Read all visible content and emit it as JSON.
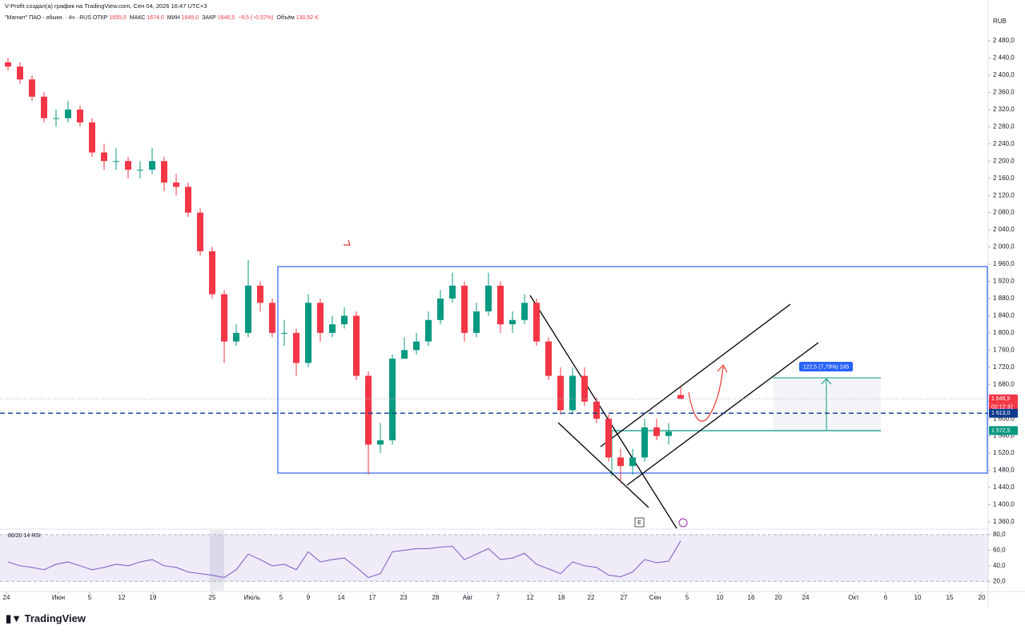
{
  "header": {
    "attribution": "V-Profit создал(а) график на TradingView.com, Сен 04, 2026 16:47 UTC+3",
    "legend": [
      {
        "label": "\"Магнит\" ПАО - обыкн. · 4ч · RUS",
        "value": ""
      },
      {
        "label": "ОТКР",
        "value": "1655,5"
      },
      {
        "label": "МАКС",
        "value": "1674,0"
      },
      {
        "label": "МИН",
        "value": "1645,0"
      },
      {
        "label": "ЗАКР",
        "value": "1646,5"
      },
      {
        "label": "",
        "value": "−9,5 (−0,57%)"
      },
      {
        "label": "Объём",
        "value": "130,52 K"
      }
    ]
  },
  "footer": {
    "logo": "TradingView"
  },
  "annotations": {
    "measure": "122,5 (7,79%) 245",
    "earnings": "E"
  },
  "chart_data": [
    {
      "type": "candlestick",
      "currency": "RUB",
      "countdown": "02:12:32",
      "up_color": "#089981",
      "down_color": "#f23645",
      "x": [
        1,
        4,
        7,
        10,
        13,
        16,
        19,
        22,
        25,
        28,
        31,
        34,
        37,
        40,
        43,
        46,
        49,
        52,
        55,
        58,
        61,
        64,
        67,
        70,
        73,
        76,
        79,
        82,
        85,
        88,
        91,
        94,
        97,
        100,
        103,
        106,
        109,
        112,
        115,
        118,
        121,
        124,
        127,
        130,
        133,
        136,
        139,
        142,
        145,
        148,
        151,
        154,
        157,
        160,
        163,
        166,
        169
      ],
      "open": [
        2430,
        2420,
        2390,
        2350,
        2300,
        2300,
        2320,
        2290,
        2220,
        2200,
        2200,
        2180,
        2180,
        2200,
        2150,
        2140,
        2080,
        1990,
        1890,
        1780,
        1800,
        1910,
        1870,
        1800,
        1800,
        1730,
        1870,
        1800,
        1820,
        1840,
        1700,
        1540,
        1550,
        1740,
        1760,
        1780,
        1830,
        1880,
        1910,
        1800,
        1850,
        1910,
        1820,
        1830,
        1870,
        1780,
        1700,
        1620,
        1700,
        1640,
        1600,
        1510,
        1490,
        1510,
        1580,
        1560,
        1655.5
      ],
      "high": [
        2440,
        2430,
        2400,
        2360,
        2320,
        2340,
        2330,
        2300,
        2240,
        2230,
        2210,
        2200,
        2230,
        2210,
        2170,
        2150,
        2090,
        2000,
        1900,
        1820,
        1970,
        1920,
        1880,
        1830,
        1810,
        1890,
        1880,
        1840,
        1860,
        1850,
        1710,
        1590,
        1750,
        1790,
        1800,
        1850,
        1900,
        1940,
        1920,
        1870,
        1940,
        1920,
        1850,
        1890,
        1880,
        1790,
        1720,
        1720,
        1720,
        1650,
        1610,
        1530,
        1530,
        1600,
        1600,
        1590,
        1674
      ],
      "low": [
        2410,
        2380,
        2340,
        2290,
        2280,
        2290,
        2280,
        2210,
        2180,
        2180,
        2160,
        2160,
        2170,
        2130,
        2120,
        2070,
        1980,
        1880,
        1730,
        1770,
        1790,
        1850,
        1790,
        1770,
        1700,
        1720,
        1780,
        1790,
        1810,
        1690,
        1470,
        1520,
        1540,
        1740,
        1750,
        1770,
        1820,
        1870,
        1780,
        1790,
        1840,
        1800,
        1800,
        1820,
        1770,
        1690,
        1610,
        1610,
        1630,
        1590,
        1500,
        1450,
        1470,
        1500,
        1550,
        1540,
        1645
      ],
      "close": [
        2420,
        2390,
        2350,
        2300,
        2300,
        2320,
        2290,
        2220,
        2200,
        2200,
        2180,
        2180,
        2200,
        2150,
        2140,
        2080,
        1990,
        1890,
        1780,
        1800,
        1910,
        1870,
        1800,
        1800,
        1730,
        1870,
        1800,
        1820,
        1840,
        1700,
        1540,
        1550,
        1740,
        1760,
        1780,
        1830,
        1880,
        1910,
        1800,
        1850,
        1910,
        1820,
        1830,
        1870,
        1780,
        1700,
        1620,
        1700,
        1640,
        1600,
        1510,
        1490,
        1510,
        1580,
        1560,
        1570,
        1646.5
      ],
      "xlim": [
        0,
        245.6
      ],
      "xticks": [
        {
          "value": 0.6,
          "label": "24"
        },
        {
          "value": 13.6,
          "label": "Июн"
        },
        {
          "value": 21.4,
          "label": "5"
        },
        {
          "value": 29.4,
          "label": "12"
        },
        {
          "value": 37.2,
          "label": "19"
        },
        {
          "value": 52,
          "label": "25"
        },
        {
          "value": 62,
          "label": "Июль"
        },
        {
          "value": 69.2,
          "label": "5"
        },
        {
          "value": 76,
          "label": "9"
        },
        {
          "value": 84.2,
          "label": "14"
        },
        {
          "value": 92,
          "label": "17"
        },
        {
          "value": 99.8,
          "label": "23"
        },
        {
          "value": 107.8,
          "label": "28"
        },
        {
          "value": 115.8,
          "label": "Авг"
        },
        {
          "value": 123.4,
          "label": "7"
        },
        {
          "value": 131.4,
          "label": "12"
        },
        {
          "value": 139.2,
          "label": "18"
        },
        {
          "value": 146.6,
          "label": "22"
        },
        {
          "value": 154.8,
          "label": "27"
        },
        {
          "value": 162.6,
          "label": "Сен"
        },
        {
          "value": 170.6,
          "label": "5"
        },
        {
          "value": 178.8,
          "label": "10"
        },
        {
          "value": 186.6,
          "label": "16"
        },
        {
          "value": 193.4,
          "label": "20"
        },
        {
          "value": 200.2,
          "label": "24"
        },
        {
          "value": 212.2,
          "label": "Окт"
        },
        {
          "value": 220.2,
          "label": "6"
        },
        {
          "value": 228.2,
          "label": "10"
        },
        {
          "value": 236.2,
          "label": "15"
        },
        {
          "value": 244.2,
          "label": "20"
        }
      ],
      "ylim": [
        1345,
        2541.5
      ],
      "yticks": [
        {
          "value": 2480,
          "label": "2 480,0"
        },
        {
          "value": 2440,
          "label": "2 440,0"
        },
        {
          "value": 2400,
          "label": "2 400,0"
        },
        {
          "value": 2360,
          "label": "2 360,0"
        },
        {
          "value": 2320,
          "label": "2 320,0"
        },
        {
          "value": 2280,
          "label": "2 280,0"
        },
        {
          "value": 2240,
          "label": "2 240,0"
        },
        {
          "value": 2200,
          "label": "2 200,0"
        },
        {
          "value": 2160,
          "label": "2 160,0"
        },
        {
          "value": 2120,
          "label": "2 120,0"
        },
        {
          "value": 2080,
          "label": "2 080,0"
        },
        {
          "value": 2040,
          "label": "2 040,0"
        },
        {
          "value": 2000,
          "label": "2 000,0"
        },
        {
          "value": 1960,
          "label": "1 960,0"
        },
        {
          "value": 1920,
          "label": "1 920,0"
        },
        {
          "value": 1880,
          "label": "1 880,0"
        },
        {
          "value": 1840,
          "label": "1 840,0"
        },
        {
          "value": 1800,
          "label": "1 800,0"
        },
        {
          "value": 1760,
          "label": "1 760,0"
        },
        {
          "value": 1720,
          "label": "1 720,0"
        },
        {
          "value": 1680,
          "label": "1 680,0"
        },
        {
          "value": 1640,
          "label": "1 640,0"
        },
        {
          "value": 1600,
          "label": "1 600,0"
        },
        {
          "value": 1560,
          "label": "1 560,0"
        },
        {
          "value": 1520,
          "label": "1 520,0"
        },
        {
          "value": 1480,
          "label": "1 480,0"
        },
        {
          "value": 1440,
          "label": "1 440,0"
        },
        {
          "value": 1400,
          "label": "1 400,0"
        },
        {
          "value": 1360,
          "label": "1 360,0"
        }
      ],
      "grid": false,
      "price_lines": [
        {
          "value": 1646.5,
          "label": "1 646,5",
          "color": "#f23645",
          "style": "dotted"
        },
        {
          "value": 1613,
          "label": "1 613,0",
          "color": "#0d3a8c",
          "style": "dashed"
        },
        {
          "value": 1572.5,
          "label": "1 572,5",
          "color": "#089981",
          "style": "none"
        }
      ]
    },
    {
      "type": "line",
      "title": "80/20 14 RSI",
      "color": "#7e57c2",
      "x": [
        1,
        4,
        7,
        10,
        13,
        16,
        19,
        22,
        25,
        28,
        31,
        34,
        37,
        40,
        43,
        46,
        49,
        52,
        55,
        58,
        61,
        64,
        67,
        70,
        73,
        76,
        79,
        82,
        85,
        88,
        91,
        94,
        97,
        100,
        103,
        106,
        109,
        112,
        115,
        118,
        121,
        124,
        127,
        130,
        133,
        136,
        139,
        142,
        145,
        148,
        151,
        154,
        157,
        160,
        163,
        166,
        169
      ],
      "values": [
        45,
        40,
        38,
        35,
        42,
        45,
        40,
        35,
        38,
        42,
        40,
        45,
        48,
        40,
        38,
        32,
        30,
        28,
        25,
        35,
        55,
        48,
        40,
        42,
        35,
        58,
        45,
        48,
        50,
        38,
        25,
        30,
        58,
        60,
        62,
        62,
        64,
        65,
        48,
        55,
        62,
        48,
        50,
        56,
        42,
        36,
        30,
        45,
        40,
        38,
        28,
        26,
        32,
        48,
        44,
        46,
        72
      ],
      "xlim": [
        0,
        245.6
      ],
      "ylim": [
        8,
        86
      ],
      "yticks": [
        {
          "value": 80,
          "label": "80,0"
        },
        {
          "value": 60,
          "label": "60,0"
        },
        {
          "value": 40,
          "label": "40,0"
        },
        {
          "value": 20,
          "label": "20,0"
        }
      ],
      "band": [
        20,
        80
      ]
    }
  ]
}
